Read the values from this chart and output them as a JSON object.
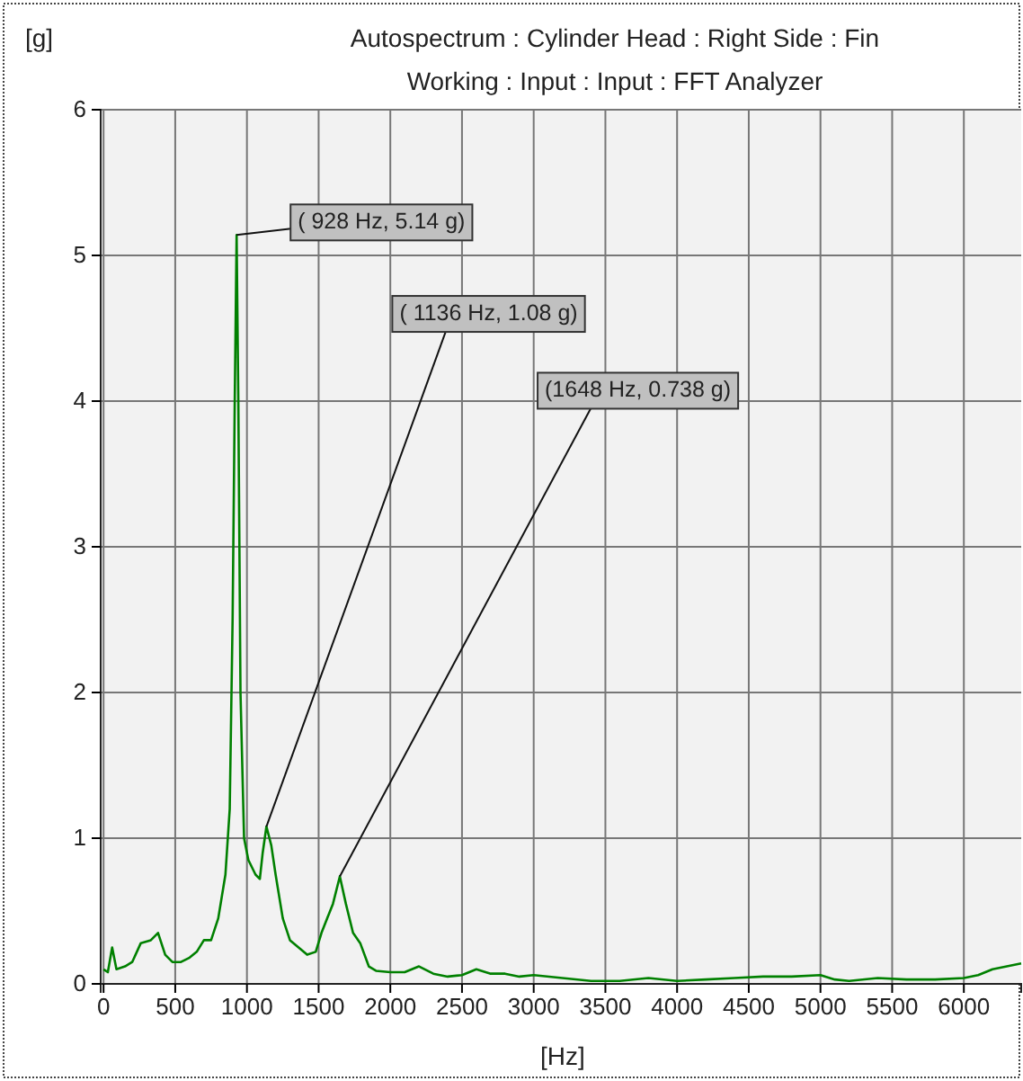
{
  "chart_data": {
    "type": "line",
    "title": "Autospectrum : Cylinder Head : Right Side : Fin",
    "subtitle": "Working : Input : Input : FFT Analyzer",
    "xlabel": "[Hz]",
    "ylabel": "[g]",
    "xlim": [
      -20,
      6400
    ],
    "xticks": [
      0,
      500,
      1000,
      1500,
      2000,
      2500,
      3000,
      3500,
      4000,
      4500,
      5000,
      5500,
      6000
    ],
    "ylim": [
      0,
      6
    ],
    "yticks": [
      0,
      1,
      2,
      3,
      4,
      5,
      6
    ],
    "grid": true,
    "marker": "none",
    "line_style": "solid",
    "series": [
      {
        "color": "#008000",
        "x": [
          0,
          30,
          60,
          90,
          150,
          200,
          260,
          330,
          380,
          430,
          480,
          540,
          600,
          650,
          700,
          750,
          800,
          850,
          880,
          900,
          915,
          928,
          940,
          955,
          980,
          1010,
          1060,
          1090,
          1110,
          1136,
          1170,
          1200,
          1250,
          1300,
          1360,
          1420,
          1480,
          1520,
          1560,
          1600,
          1648,
          1690,
          1740,
          1790,
          1850,
          1900,
          2000,
          2100,
          2200,
          2300,
          2400,
          2500,
          2600,
          2700,
          2800,
          2900,
          3000,
          3200,
          3400,
          3600,
          3800,
          4000,
          4200,
          4400,
          4600,
          4800,
          5000,
          5100,
          5200,
          5400,
          5600,
          5800,
          6000,
          6100,
          6200,
          6300,
          6400
        ],
        "values": [
          0.1,
          0.08,
          0.25,
          0.1,
          0.12,
          0.15,
          0.28,
          0.3,
          0.35,
          0.2,
          0.15,
          0.15,
          0.18,
          0.22,
          0.3,
          0.3,
          0.45,
          0.75,
          1.2,
          2.5,
          4,
          5.14,
          4,
          2,
          1.0,
          0.85,
          0.75,
          0.72,
          0.9,
          1.08,
          0.95,
          0.75,
          0.45,
          0.3,
          0.25,
          0.2,
          0.22,
          0.35,
          0.45,
          0.55,
          0.738,
          0.55,
          0.35,
          0.28,
          0.12,
          0.09,
          0.08,
          0.08,
          0.12,
          0.07,
          0.05,
          0.06,
          0.1,
          0.07,
          0.07,
          0.05,
          0.06,
          0.04,
          0.02,
          0.02,
          0.04,
          0.02,
          0.03,
          0.04,
          0.05,
          0.05,
          0.06,
          0.03,
          0.02,
          0.04,
          0.03,
          0.03,
          0.04,
          0.06,
          0.1,
          0.12,
          0.14
        ]
      }
    ],
    "annotations": [
      {
        "text": "( 928 Hz, 5.14 g)",
        "x": 928,
        "y": 5.14
      },
      {
        "text": "( 1136 Hz, 1.08 g)",
        "x": 1136,
        "y": 1.08
      },
      {
        "text": "(1648 Hz, 0.738 g)",
        "x": 1648,
        "y": 0.738
      }
    ]
  }
}
